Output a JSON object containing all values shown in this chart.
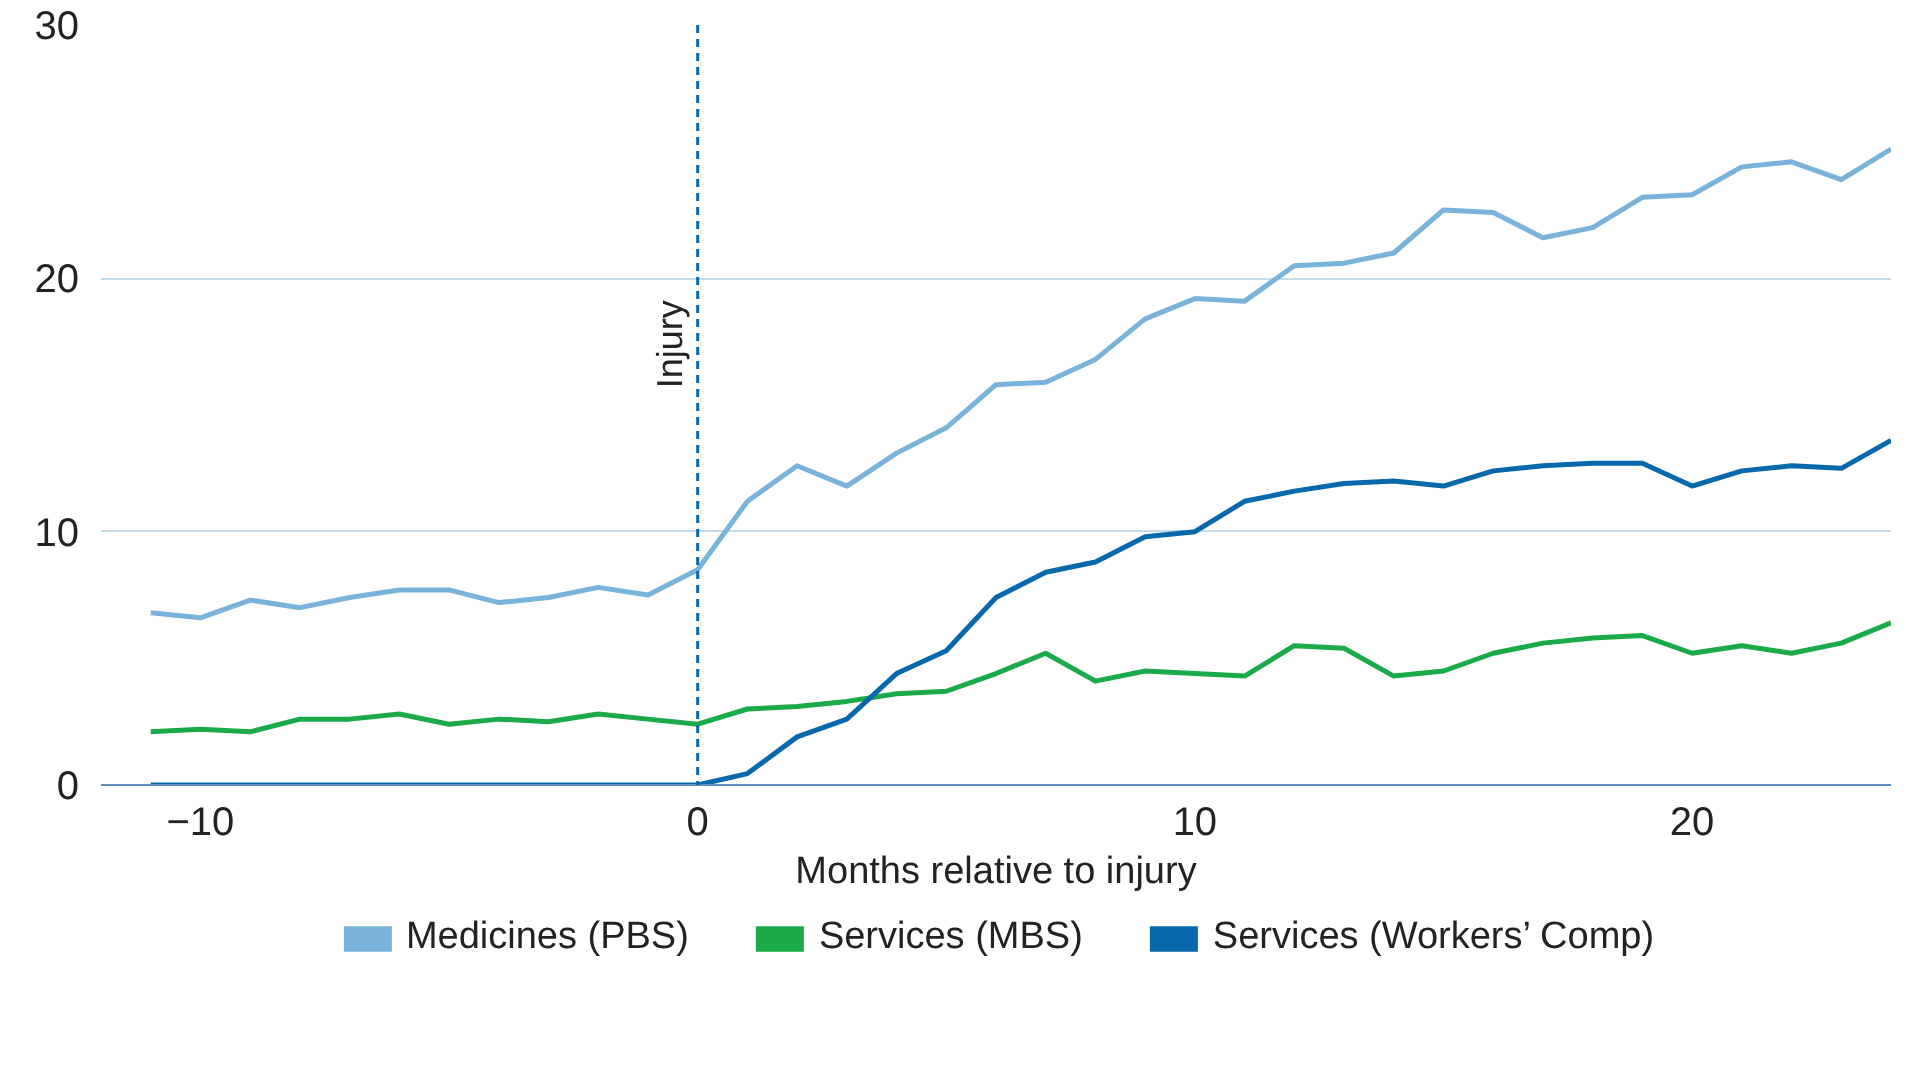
{
  "chart_data": {
    "type": "line",
    "xlabel": "Months relative to injury",
    "x": [
      -11,
      -10,
      -9,
      -8,
      -7,
      -6,
      -5,
      -4,
      -3,
      -2,
      -1,
      0,
      1,
      2,
      3,
      4,
      5,
      6,
      7,
      8,
      9,
      10,
      11,
      12,
      13,
      14,
      15,
      16,
      17,
      18,
      19,
      20,
      21,
      22,
      23,
      24
    ],
    "series": [
      {
        "name": "Medicines (PBS)",
        "color": "#7ab3d9",
        "values": [
          6.8,
          6.6,
          7.3,
          7.0,
          7.4,
          7.7,
          7.7,
          7.2,
          7.4,
          7.8,
          7.5,
          8.5,
          11.2,
          12.6,
          11.8,
          13.1,
          14.1,
          15.8,
          15.9,
          16.8,
          18.4,
          19.2,
          19.1,
          20.5,
          20.6,
          21.0,
          22.7,
          22.6,
          21.6,
          22.0,
          23.2,
          23.3,
          24.4,
          24.6,
          23.9,
          25.1
        ]
      },
      {
        "name": "Services (MBS)",
        "color": "#1aaa4a",
        "values": [
          2.1,
          2.2,
          2.1,
          2.6,
          2.6,
          2.8,
          2.4,
          2.6,
          2.5,
          2.8,
          2.6,
          2.4,
          3.0,
          3.1,
          3.3,
          3.6,
          3.7,
          4.4,
          5.2,
          4.1,
          4.5,
          4.4,
          4.3,
          5.5,
          5.4,
          4.3,
          4.5,
          5.2,
          5.6,
          5.8,
          5.9,
          5.2,
          5.5,
          5.2,
          5.6,
          6.4
        ]
      },
      {
        "name": "Services (Workers’ Comp)",
        "color": "#0868ac",
        "values": [
          0,
          0,
          0,
          0,
          0,
          0,
          0,
          0,
          0,
          0,
          0,
          0,
          0.45,
          1.9,
          2.6,
          4.4,
          5.3,
          7.4,
          8.4,
          8.8,
          9.8,
          10.0,
          11.2,
          11.6,
          11.9,
          12.0,
          11.8,
          12.4,
          12.6,
          12.7,
          12.7,
          11.8,
          12.4,
          12.6,
          12.5,
          13.6
        ]
      }
    ],
    "xlim": [
      -12,
      24
    ],
    "xticks": [
      -10,
      0,
      10,
      20
    ],
    "ylim": [
      0,
      30
    ],
    "yticks": [
      0,
      10,
      20,
      30
    ],
    "ref_lines": [
      {
        "axis": "x",
        "value": 0,
        "label": "Injury",
        "color": "#0868ac",
        "line_style": "dashed"
      }
    ],
    "grid": "y",
    "legend": "bottom",
    "marker": "none",
    "line_style": "solid"
  }
}
